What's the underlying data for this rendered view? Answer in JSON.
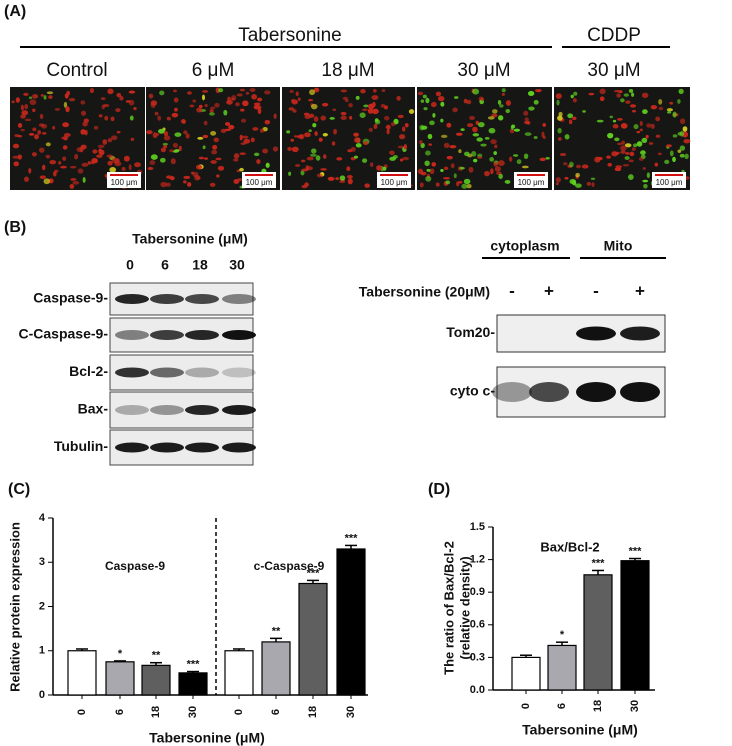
{
  "panel_a": {
    "label": "(A)",
    "group_labels": [
      "Tabersonine",
      "CDDP"
    ],
    "conditions": [
      "Control",
      "6 μM",
      "18 μM",
      "30 μM",
      "30 μM"
    ],
    "scale_bars": [
      "100 μm",
      "100 μm",
      "100 μm",
      "100 μm",
      "100 μm"
    ]
  },
  "panel_b": {
    "label": "(B)",
    "left_header": "Tabersonine (μM)",
    "lanes": [
      "0",
      "6",
      "18",
      "30"
    ],
    "left_rows": [
      "Caspase-9-",
      "C-Caspase-9-",
      "Bcl-2-",
      "Bax-",
      "Tubulin-"
    ],
    "fractions": [
      "cytoplasm",
      "Mito"
    ],
    "treatment_label": "Tabersonine (20μM)",
    "treatment_signs": [
      "-",
      "+",
      "-",
      "+"
    ],
    "right_rows": [
      "Tom20-",
      "cyto c-"
    ]
  },
  "chart_data": [
    {
      "type": "bar",
      "panel_label": "(C)",
      "y_label": "Relative protein expression",
      "x_label": "Tabersonine (μM)",
      "group_labels": [
        "Caspase-9",
        "c-Caspase-9"
      ],
      "categories": [
        "0",
        "6",
        "18",
        "30",
        "0",
        "6",
        "18",
        "30"
      ],
      "values": [
        1.0,
        0.75,
        0.67,
        0.5,
        1.0,
        1.2,
        2.52,
        3.3
      ],
      "errors": [
        0.04,
        0.02,
        0.06,
        0.03,
        0.04,
        0.08,
        0.07,
        0.08
      ],
      "significance": [
        null,
        "*",
        "**",
        "***",
        null,
        "**",
        "***",
        "***"
      ],
      "colors": [
        "#ffffff",
        "#a8a8ae",
        "#5f5f5f",
        "#000000",
        "#ffffff",
        "#a8a8ae",
        "#5f5f5f",
        "#000000"
      ],
      "ylim": [
        0,
        4
      ],
      "yticks": [
        0,
        1,
        2,
        3,
        4
      ]
    },
    {
      "type": "bar",
      "panel_label": "(D)",
      "title": "Bax/Bcl-2",
      "y_label": [
        "The ratio of Bax/Bcl-2",
        "(relative density)"
      ],
      "x_label": "Tabersonine (μM)",
      "categories": [
        "0",
        "6",
        "18",
        "30"
      ],
      "values": [
        0.3,
        0.41,
        1.06,
        1.19
      ],
      "errors": [
        0.02,
        0.03,
        0.04,
        0.02
      ],
      "significance": [
        null,
        "*",
        "***",
        "***"
      ],
      "colors": [
        "#ffffff",
        "#a8a8ae",
        "#5f5f5f",
        "#000000"
      ],
      "ylim": [
        0,
        1.5
      ],
      "yticks": [
        {
          "value": 0,
          "label": "0.0"
        },
        0.3,
        0.6,
        0.9,
        1.2,
        1.5
      ]
    }
  ]
}
